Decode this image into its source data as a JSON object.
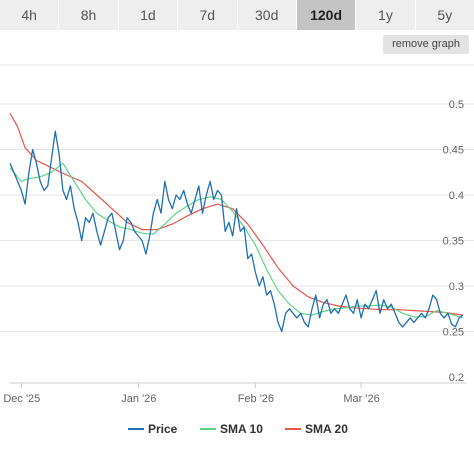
{
  "tabs": [
    {
      "label": "4h",
      "active": false
    },
    {
      "label": "8h",
      "active": false
    },
    {
      "label": "1d",
      "active": false
    },
    {
      "label": "7d",
      "active": false
    },
    {
      "label": "30d",
      "active": false
    },
    {
      "label": "120d",
      "active": true
    },
    {
      "label": "1y",
      "active": false
    },
    {
      "label": "5y",
      "active": false
    }
  ],
  "remove_graph_label": "remove graph",
  "chart_data": {
    "type": "line",
    "title": "",
    "xlabel": "",
    "ylabel": "",
    "ylim": [
      0.2,
      0.5
    ],
    "y_ticks": [
      "0.2",
      "0.25",
      "0.3",
      "0.35",
      "0.4",
      "0.45",
      "0.5"
    ],
    "y_axis_position": "right",
    "x_ticks": [
      {
        "label": "Dec '25",
        "date": "2025-12-01"
      },
      {
        "label": "Jan '26",
        "date": "2026-01-01"
      },
      {
        "label": "Feb '26",
        "date": "2026-02-01"
      },
      {
        "label": "Mar '26",
        "date": "2026-03-01"
      }
    ],
    "xlim": [
      "2025-11-28",
      "2026-03-28"
    ],
    "grid": "horizontal",
    "legend_position": "bottom",
    "series": [
      {
        "name": "Price",
        "color": "#1f6fb4",
        "points": [
          [
            "2025-11-28",
            0.435
          ],
          [
            "2025-11-30",
            0.415
          ],
          [
            "2025-12-01",
            0.405
          ],
          [
            "2025-12-02",
            0.39
          ],
          [
            "2025-12-03",
            0.425
          ],
          [
            "2025-12-04",
            0.45
          ],
          [
            "2025-12-05",
            0.435
          ],
          [
            "2025-12-06",
            0.415
          ],
          [
            "2025-12-07",
            0.405
          ],
          [
            "2025-12-08",
            0.41
          ],
          [
            "2025-12-09",
            0.44
          ],
          [
            "2025-12-10",
            0.47
          ],
          [
            "2025-12-11",
            0.445
          ],
          [
            "2025-12-12",
            0.405
          ],
          [
            "2025-12-13",
            0.395
          ],
          [
            "2025-12-14",
            0.41
          ],
          [
            "2025-12-15",
            0.385
          ],
          [
            "2025-12-16",
            0.37
          ],
          [
            "2025-12-17",
            0.35
          ],
          [
            "2025-12-18",
            0.375
          ],
          [
            "2025-12-19",
            0.37
          ],
          [
            "2025-12-20",
            0.38
          ],
          [
            "2025-12-21",
            0.36
          ],
          [
            "2025-12-22",
            0.345
          ],
          [
            "2025-12-23",
            0.36
          ],
          [
            "2025-12-24",
            0.375
          ],
          [
            "2025-12-25",
            0.38
          ],
          [
            "2025-12-26",
            0.36
          ],
          [
            "2025-12-27",
            0.34
          ],
          [
            "2025-12-28",
            0.35
          ],
          [
            "2025-12-29",
            0.375
          ],
          [
            "2025-12-30",
            0.37
          ],
          [
            "2025-12-31",
            0.36
          ],
          [
            "2026-01-01",
            0.355
          ],
          [
            "2026-01-02",
            0.35
          ],
          [
            "2026-01-03",
            0.335
          ],
          [
            "2026-01-04",
            0.355
          ],
          [
            "2026-01-05",
            0.38
          ],
          [
            "2026-01-06",
            0.395
          ],
          [
            "2026-01-07",
            0.38
          ],
          [
            "2026-01-08",
            0.415
          ],
          [
            "2026-01-09",
            0.395
          ],
          [
            "2026-01-10",
            0.385
          ],
          [
            "2026-01-11",
            0.4
          ],
          [
            "2026-01-12",
            0.395
          ],
          [
            "2026-01-13",
            0.405
          ],
          [
            "2026-01-14",
            0.39
          ],
          [
            "2026-01-15",
            0.38
          ],
          [
            "2026-01-16",
            0.395
          ],
          [
            "2026-01-17",
            0.41
          ],
          [
            "2026-01-18",
            0.38
          ],
          [
            "2026-01-19",
            0.4
          ],
          [
            "2026-01-20",
            0.415
          ],
          [
            "2026-01-21",
            0.395
          ],
          [
            "2026-01-22",
            0.405
          ],
          [
            "2026-01-23",
            0.4
          ],
          [
            "2026-01-24",
            0.36
          ],
          [
            "2026-01-25",
            0.37
          ],
          [
            "2026-01-26",
            0.355
          ],
          [
            "2026-01-27",
            0.385
          ],
          [
            "2026-01-28",
            0.36
          ],
          [
            "2026-01-29",
            0.365
          ],
          [
            "2026-01-30",
            0.33
          ],
          [
            "2026-01-31",
            0.335
          ],
          [
            "2026-02-01",
            0.315
          ],
          [
            "2026-02-02",
            0.3
          ],
          [
            "2026-02-03",
            0.31
          ],
          [
            "2026-02-04",
            0.29
          ],
          [
            "2026-02-05",
            0.295
          ],
          [
            "2026-02-06",
            0.28
          ],
          [
            "2026-02-07",
            0.26
          ],
          [
            "2026-02-08",
            0.25
          ],
          [
            "2026-02-09",
            0.27
          ],
          [
            "2026-02-10",
            0.275
          ],
          [
            "2026-02-11",
            0.27
          ],
          [
            "2026-02-12",
            0.265
          ],
          [
            "2026-02-13",
            0.27
          ],
          [
            "2026-02-14",
            0.26
          ],
          [
            "2026-02-15",
            0.255
          ],
          [
            "2026-02-16",
            0.275
          ],
          [
            "2026-02-17",
            0.29
          ],
          [
            "2026-02-18",
            0.265
          ],
          [
            "2026-02-19",
            0.28
          ],
          [
            "2026-02-20",
            0.285
          ],
          [
            "2026-02-21",
            0.27
          ],
          [
            "2026-02-22",
            0.275
          ],
          [
            "2026-02-23",
            0.27
          ],
          [
            "2026-02-24",
            0.28
          ],
          [
            "2026-02-25",
            0.29
          ],
          [
            "2026-02-26",
            0.275
          ],
          [
            "2026-02-27",
            0.27
          ],
          [
            "2026-02-28",
            0.285
          ],
          [
            "2026-03-01",
            0.265
          ],
          [
            "2026-03-02",
            0.28
          ],
          [
            "2026-03-03",
            0.275
          ],
          [
            "2026-03-04",
            0.285
          ],
          [
            "2026-03-05",
            0.295
          ],
          [
            "2026-03-06",
            0.27
          ],
          [
            "2026-03-07",
            0.285
          ],
          [
            "2026-03-08",
            0.275
          ],
          [
            "2026-03-09",
            0.28
          ],
          [
            "2026-03-10",
            0.27
          ],
          [
            "2026-03-11",
            0.26
          ],
          [
            "2026-03-12",
            0.255
          ],
          [
            "2026-03-13",
            0.26
          ],
          [
            "2026-03-14",
            0.265
          ],
          [
            "2026-03-15",
            0.26
          ],
          [
            "2026-03-16",
            0.265
          ],
          [
            "2026-03-17",
            0.27
          ],
          [
            "2026-03-18",
            0.265
          ],
          [
            "2026-03-19",
            0.275
          ],
          [
            "2026-03-20",
            0.29
          ],
          [
            "2026-03-21",
            0.285
          ],
          [
            "2026-03-22",
            0.27
          ],
          [
            "2026-03-23",
            0.265
          ],
          [
            "2026-03-24",
            0.27
          ],
          [
            "2026-03-25",
            0.258
          ],
          [
            "2026-03-26",
            0.255
          ],
          [
            "2026-03-27",
            0.265
          ],
          [
            "2026-03-28",
            0.268
          ]
        ]
      },
      {
        "name": "SMA 10",
        "color": "#5fd487",
        "points": [
          [
            "2025-11-28",
            0.43
          ],
          [
            "2025-12-01",
            0.415
          ],
          [
            "2025-12-03",
            0.418
          ],
          [
            "2025-12-06",
            0.42
          ],
          [
            "2025-12-09",
            0.425
          ],
          [
            "2025-12-12",
            0.435
          ],
          [
            "2025-12-15",
            0.415
          ],
          [
            "2025-12-18",
            0.395
          ],
          [
            "2025-12-21",
            0.38
          ],
          [
            "2025-12-24",
            0.372
          ],
          [
            "2025-12-27",
            0.365
          ],
          [
            "2025-12-30",
            0.362
          ],
          [
            "2026-01-02",
            0.358
          ],
          [
            "2026-01-05",
            0.357
          ],
          [
            "2026-01-08",
            0.368
          ],
          [
            "2026-01-11",
            0.38
          ],
          [
            "2026-01-14",
            0.388
          ],
          [
            "2026-01-17",
            0.395
          ],
          [
            "2026-01-20",
            0.398
          ],
          [
            "2026-01-23",
            0.395
          ],
          [
            "2026-01-26",
            0.382
          ],
          [
            "2026-01-29",
            0.365
          ],
          [
            "2026-02-01",
            0.345
          ],
          [
            "2026-02-04",
            0.318
          ],
          [
            "2026-02-07",
            0.295
          ],
          [
            "2026-02-10",
            0.28
          ],
          [
            "2026-02-13",
            0.27
          ],
          [
            "2026-02-16",
            0.268
          ],
          [
            "2026-02-19",
            0.272
          ],
          [
            "2026-02-22",
            0.275
          ],
          [
            "2026-02-25",
            0.276
          ],
          [
            "2026-02-28",
            0.278
          ],
          [
            "2026-03-03",
            0.278
          ],
          [
            "2026-03-06",
            0.279
          ],
          [
            "2026-03-09",
            0.277
          ],
          [
            "2026-03-12",
            0.27
          ],
          [
            "2026-03-15",
            0.266
          ],
          [
            "2026-03-18",
            0.266
          ],
          [
            "2026-03-21",
            0.273
          ],
          [
            "2026-03-24",
            0.27
          ],
          [
            "2026-03-28",
            0.265
          ]
        ]
      },
      {
        "name": "SMA 20",
        "color": "#e8564a",
        "points": [
          [
            "2025-11-28",
            0.49
          ],
          [
            "2025-11-30",
            0.475
          ],
          [
            "2025-12-02",
            0.452
          ],
          [
            "2025-12-05",
            0.438
          ],
          [
            "2025-12-09",
            0.43
          ],
          [
            "2025-12-13",
            0.422
          ],
          [
            "2025-12-17",
            0.415
          ],
          [
            "2025-12-21",
            0.4
          ],
          [
            "2025-12-25",
            0.385
          ],
          [
            "2025-12-29",
            0.37
          ],
          [
            "2026-01-02",
            0.362
          ],
          [
            "2026-01-06",
            0.362
          ],
          [
            "2026-01-10",
            0.368
          ],
          [
            "2026-01-14",
            0.377
          ],
          [
            "2026-01-18",
            0.385
          ],
          [
            "2026-01-22",
            0.39
          ],
          [
            "2026-01-26",
            0.385
          ],
          [
            "2026-01-30",
            0.368
          ],
          [
            "2026-02-03",
            0.345
          ],
          [
            "2026-02-07",
            0.32
          ],
          [
            "2026-02-11",
            0.3
          ],
          [
            "2026-02-15",
            0.288
          ],
          [
            "2026-02-19",
            0.282
          ],
          [
            "2026-02-23",
            0.278
          ],
          [
            "2026-02-27",
            0.276
          ],
          [
            "2026-03-03",
            0.275
          ],
          [
            "2026-03-07",
            0.274
          ],
          [
            "2026-03-11",
            0.274
          ],
          [
            "2026-03-15",
            0.273
          ],
          [
            "2026-03-19",
            0.272
          ],
          [
            "2026-03-23",
            0.271
          ],
          [
            "2026-03-28",
            0.268
          ]
        ]
      }
    ]
  }
}
